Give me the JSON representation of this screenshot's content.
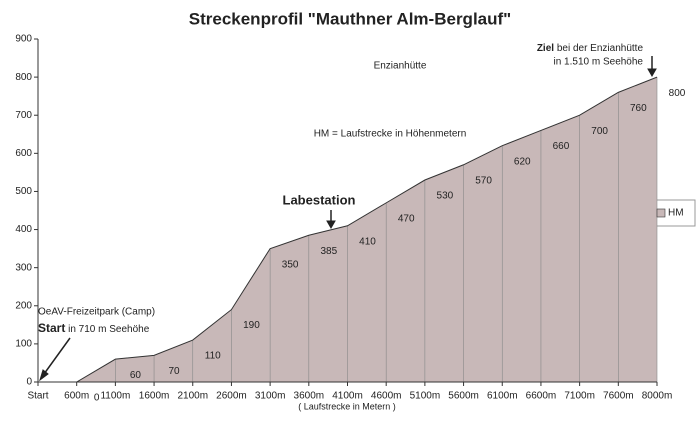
{
  "chart_data": {
    "type": "area",
    "title": "Streckenprofil \"Mauthner Alm-Berglauf\"",
    "x_label": "( Laufstrecke in Metern )",
    "categories": [
      "Start",
      "600m",
      "1100m",
      "1600m",
      "2100m",
      "2600m",
      "3100m",
      "3600m",
      "4100m",
      "4600m",
      "5100m",
      "5600m",
      "6100m",
      "6600m",
      "7100m",
      "7600m",
      "8000m"
    ],
    "series": [
      {
        "name": "HM",
        "color": "#c8b8b8",
        "values": [
          0,
          0,
          60,
          70,
          110,
          190,
          350,
          385,
          410,
          470,
          530,
          570,
          620,
          660,
          700,
          760,
          800
        ]
      }
    ],
    "ylim": [
      0,
      900
    ],
    "yticks": [
      0,
      100,
      200,
      300,
      400,
      500,
      600,
      700,
      800,
      900
    ],
    "grid": false,
    "legend": "right",
    "annotations": {
      "enzianhuette": "Enzianhütte",
      "hm_note": "HM  =  Laufstrecke in Höhenmetern",
      "labestation": "Labestation",
      "ziel_bold": "Ziel",
      "ziel_line1": "bei der Enzianhütte",
      "ziel_line2": "in 1.510 m Seehöhe",
      "start_camp": "OeAV-Freizeitpark (Camp)",
      "start_bold": "Start",
      "start_rest": "in 710 m Seehöhe"
    }
  }
}
